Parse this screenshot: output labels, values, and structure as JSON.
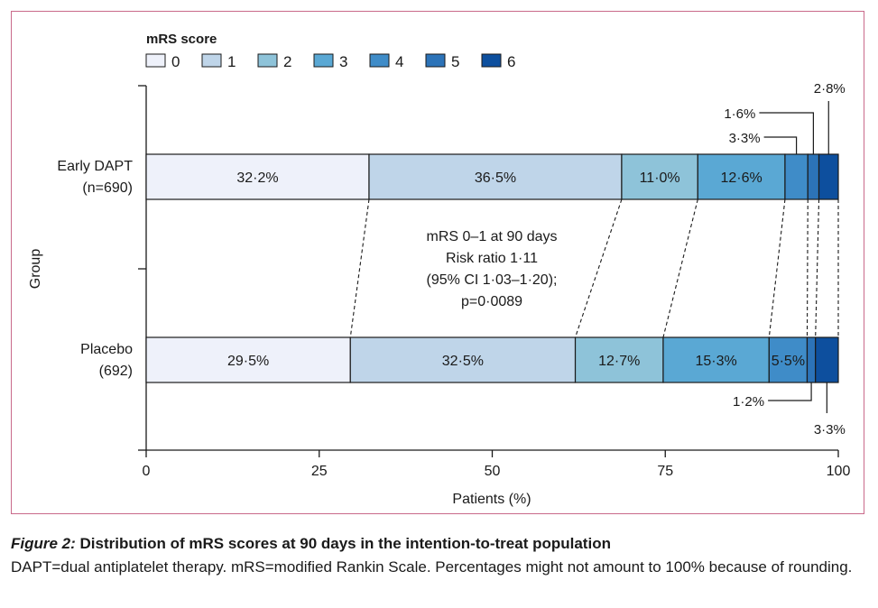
{
  "colors": {
    "frame": "#c96a8a",
    "mrs": [
      "#eef1fa",
      "#bfd5e9",
      "#8ec3d9",
      "#5aa8d4",
      "#3f8cc8",
      "#2c73b8",
      "#0d4f9e"
    ]
  },
  "chart_data": {
    "type": "bar",
    "orientation": "horizontal-stacked",
    "legend_title": "mRS score",
    "legend_placement": "top-left",
    "legend": [
      "0",
      "1",
      "2",
      "3",
      "4",
      "5",
      "6"
    ],
    "ylabel": "Group",
    "xlabel": "Patients (%)",
    "xlim": [
      0,
      100
    ],
    "xticks": [
      "0",
      "25",
      "50",
      "75",
      "100"
    ],
    "groups": [
      {
        "name_line1": "Early DAPT",
        "name_line2": "(n=690)",
        "values": [
          32.2,
          36.5,
          11.0,
          12.6,
          3.3,
          1.6,
          2.8
        ],
        "labels": [
          "32·2%",
          "36·5%",
          "11·0%",
          "12·6%",
          "3·3%",
          "1·6%",
          "2·8%"
        ]
      },
      {
        "name_line1": "Placebo",
        "name_line2": "(692)",
        "values": [
          29.5,
          32.5,
          12.7,
          15.3,
          5.5,
          1.2,
          3.3
        ],
        "labels": [
          "29·5%",
          "32·5%",
          "12·7%",
          "15·3%",
          "5·5%",
          "1·2%",
          "3·3%"
        ]
      }
    ],
    "annotation": [
      "mRS 0–1 at 90 days",
      "Risk ratio 1·11",
      "(95% CI 1·03–1·20);",
      "p=0·0089"
    ]
  },
  "caption": {
    "label": "Figure 2:",
    "title": "Distribution of mRS scores at 90 days in the intention-to-treat population",
    "text": "DAPT=dual antiplatelet therapy. mRS=modified Rankin Scale. Percentages might not amount to 100% because of rounding."
  }
}
